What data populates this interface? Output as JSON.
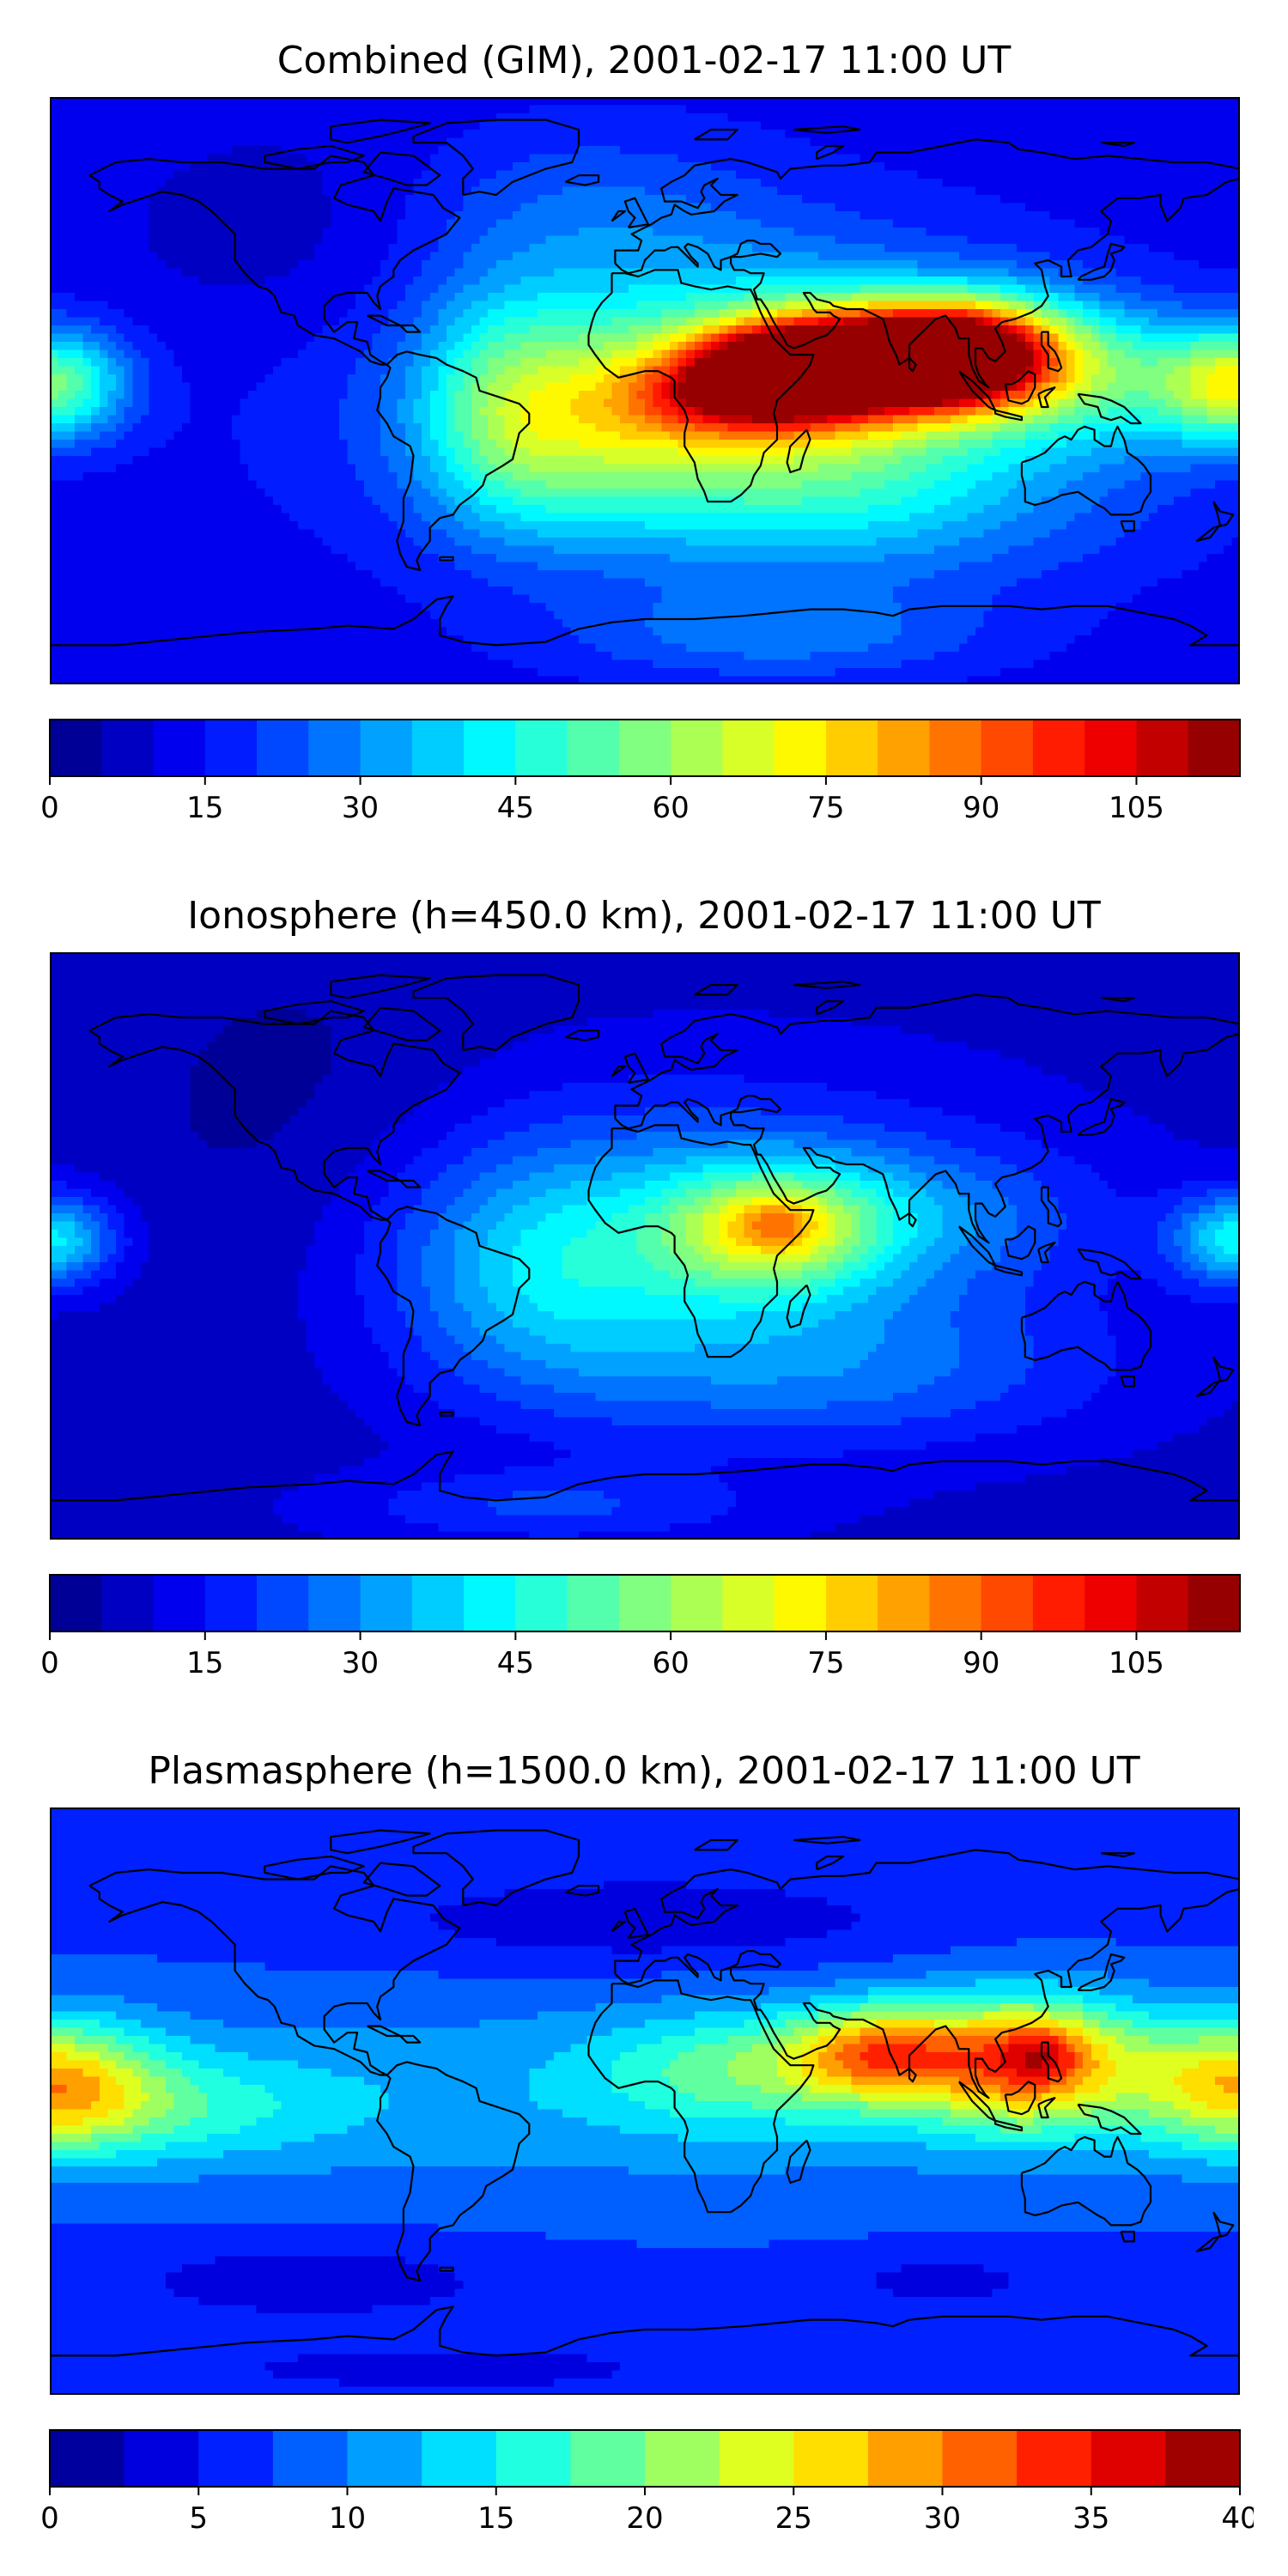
{
  "figure": {
    "panels": [
      {
        "title": "Combined (GIM), 2001-02-17 11:00 UT",
        "colorbar": {
          "vmin": 0,
          "vmax": 115,
          "levels": 23,
          "ticks": [
            0,
            15,
            30,
            45,
            60,
            75,
            90,
            105
          ],
          "tick_labels": [
            "0",
            "15",
            "30",
            "45",
            "60",
            "75",
            "90",
            "105"
          ]
        }
      },
      {
        "title": "Ionosphere  (h=450.0 km), 2001-02-17 11:00 UT",
        "colorbar": {
          "vmin": 0,
          "vmax": 115,
          "levels": 23,
          "ticks": [
            0,
            15,
            30,
            45,
            60,
            75,
            90,
            105
          ],
          "tick_labels": [
            "0",
            "15",
            "30",
            "45",
            "60",
            "75",
            "90",
            "105"
          ]
        }
      },
      {
        "title": "Plasmasphere (h=1500.0 km), 2001-02-17 11:00 UT",
        "colorbar": {
          "vmin": 0,
          "vmax": 40,
          "levels": 16,
          "ticks": [
            0,
            5,
            10,
            15,
            20,
            25,
            30,
            35,
            40
          ],
          "tick_labels": [
            "0",
            "5",
            "10",
            "15",
            "20",
            "25",
            "30",
            "35",
            "40"
          ]
        }
      }
    ],
    "colormap": "jet"
  },
  "chart_data": [
    {
      "type": "heatmap",
      "title": "Combined (GIM), 2001-02-17 11:00 UT",
      "projection": "equirectangular",
      "grid": false,
      "extent_lon": [
        -180,
        180
      ],
      "extent_lat": [
        -90,
        90
      ],
      "colorbar_range": [
        0,
        115
      ],
      "colorbar_ticks": [
        0,
        15,
        30,
        45,
        60,
        75,
        90,
        105
      ],
      "background": 12,
      "features": [
        {
          "lon": 20,
          "lat": 0,
          "amp": 22,
          "slon": 75,
          "slat": 34
        },
        {
          "lon": 42,
          "lat": -2,
          "amp": 28,
          "slon": 45,
          "slat": 24
        },
        {
          "lon": 38,
          "lat": 5,
          "amp": 70,
          "slon": 18,
          "slat": 10
        },
        {
          "lon": 12,
          "lat": -2,
          "amp": 22,
          "slon": 18,
          "slat": 10
        },
        {
          "lon": 60,
          "lat": 8,
          "amp": 45,
          "slon": 22,
          "slat": 12
        },
        {
          "lon": 80,
          "lat": 10,
          "amp": 58,
          "slon": 22,
          "slat": 10
        },
        {
          "lon": 98,
          "lat": 12,
          "amp": 50,
          "slon": 18,
          "slat": 11
        },
        {
          "lon": 118,
          "lat": 12,
          "amp": 25,
          "slon": 28,
          "slat": 13
        },
        {
          "lon": 140,
          "lat": 0,
          "amp": 20,
          "slon": 40,
          "slat": 14
        },
        {
          "lon": -22,
          "lat": -10,
          "amp": 22,
          "slon": 25,
          "slat": 22
        },
        {
          "lon": -45,
          "lat": -5,
          "amp": 18,
          "slon": 18,
          "slat": 25
        },
        {
          "lon": -180,
          "lat": 2,
          "amp": 45,
          "slon": 16,
          "slat": 12
        },
        {
          "lon": 180,
          "lat": 2,
          "amp": 45,
          "slon": 16,
          "slat": 12
        },
        {
          "lon": 65,
          "lat": -35,
          "amp": 14,
          "slon": 60,
          "slat": 18
        },
        {
          "lon": 40,
          "lat": -75,
          "amp": 14,
          "slon": 45,
          "slat": 10
        },
        {
          "lon": -20,
          "lat": 55,
          "amp": 10,
          "slon": 40,
          "slat": 20
        },
        {
          "lon": -100,
          "lat": 45,
          "amp": -6,
          "slon": 40,
          "slat": 25
        }
      ]
    },
    {
      "type": "heatmap",
      "title": "Ionosphere  (h=450.0 km), 2001-02-17 11:00 UT",
      "projection": "equirectangular",
      "grid": false,
      "extent_lon": [
        -180,
        180
      ],
      "extent_lat": [
        -90,
        90
      ],
      "colorbar_range": [
        0,
        115
      ],
      "colorbar_ticks": [
        0,
        15,
        30,
        45,
        60,
        75,
        90,
        105
      ],
      "background": 8,
      "features": [
        {
          "lon": 15,
          "lat": 0,
          "amp": 25,
          "slon": 70,
          "slat": 32
        },
        {
          "lon": 38,
          "lat": 5,
          "amp": 38,
          "slon": 22,
          "slat": 13
        },
        {
          "lon": 40,
          "lat": 7,
          "amp": 12,
          "slon": 8,
          "slat": 5
        },
        {
          "lon": 75,
          "lat": 10,
          "amp": 12,
          "slon": 40,
          "slat": 14
        },
        {
          "lon": -30,
          "lat": -8,
          "amp": 16,
          "slon": 30,
          "slat": 24
        },
        {
          "lon": -180,
          "lat": 2,
          "amp": 34,
          "slon": 14,
          "slat": 10
        },
        {
          "lon": 180,
          "lat": 2,
          "amp": 34,
          "slon": 14,
          "slat": 10
        },
        {
          "lon": 60,
          "lat": -40,
          "amp": 12,
          "slon": 60,
          "slat": 16
        },
        {
          "lon": -30,
          "lat": -80,
          "amp": 12,
          "slon": 45,
          "slat": 8
        },
        {
          "lon": -105,
          "lat": 25,
          "amp": -6,
          "slon": 40,
          "slat": 45
        }
      ]
    },
    {
      "type": "heatmap",
      "title": "Plasmasphere (h=1500.0 km), 2001-02-17 11:00 UT",
      "projection": "equirectangular",
      "grid": false,
      "extent_lon": [
        -180,
        180
      ],
      "extent_lat": [
        -90,
        90
      ],
      "colorbar_range": [
        0,
        40
      ],
      "colorbar_ticks": [
        0,
        5,
        10,
        15,
        20,
        25,
        30,
        35,
        40
      ],
      "background": 7,
      "features": [
        {
          "lon": 0,
          "lat": 2,
          "amp": 5,
          "slon": 140,
          "slat": 22
        },
        {
          "lon": 30,
          "lat": 10,
          "amp": 8,
          "slon": 30,
          "slat": 12
        },
        {
          "lon": 70,
          "lat": 15,
          "amp": 16,
          "slon": 18,
          "slat": 10
        },
        {
          "lon": 115,
          "lat": 12,
          "amp": 22,
          "slon": 24,
          "slat": 14
        },
        {
          "lon": 120,
          "lat": 15,
          "amp": 6,
          "slon": 8,
          "slat": 6
        },
        {
          "lon": -180,
          "lat": 5,
          "amp": 18,
          "slon": 22,
          "slat": 14
        },
        {
          "lon": 180,
          "lat": 5,
          "amp": 18,
          "slon": 22,
          "slat": 14
        },
        {
          "lon": -140,
          "lat": -2,
          "amp": 6,
          "slon": 35,
          "slat": 12
        },
        {
          "lon": 0,
          "lat": 55,
          "amp": -4,
          "slon": 60,
          "slat": 10
        },
        {
          "lon": -100,
          "lat": -55,
          "amp": -4,
          "slon": 40,
          "slat": 8
        },
        {
          "lon": 90,
          "lat": -55,
          "amp": -3,
          "slon": 25,
          "slat": 6
        },
        {
          "lon": -60,
          "lat": -82,
          "amp": -3,
          "slon": 60,
          "slat": 6
        }
      ]
    }
  ]
}
